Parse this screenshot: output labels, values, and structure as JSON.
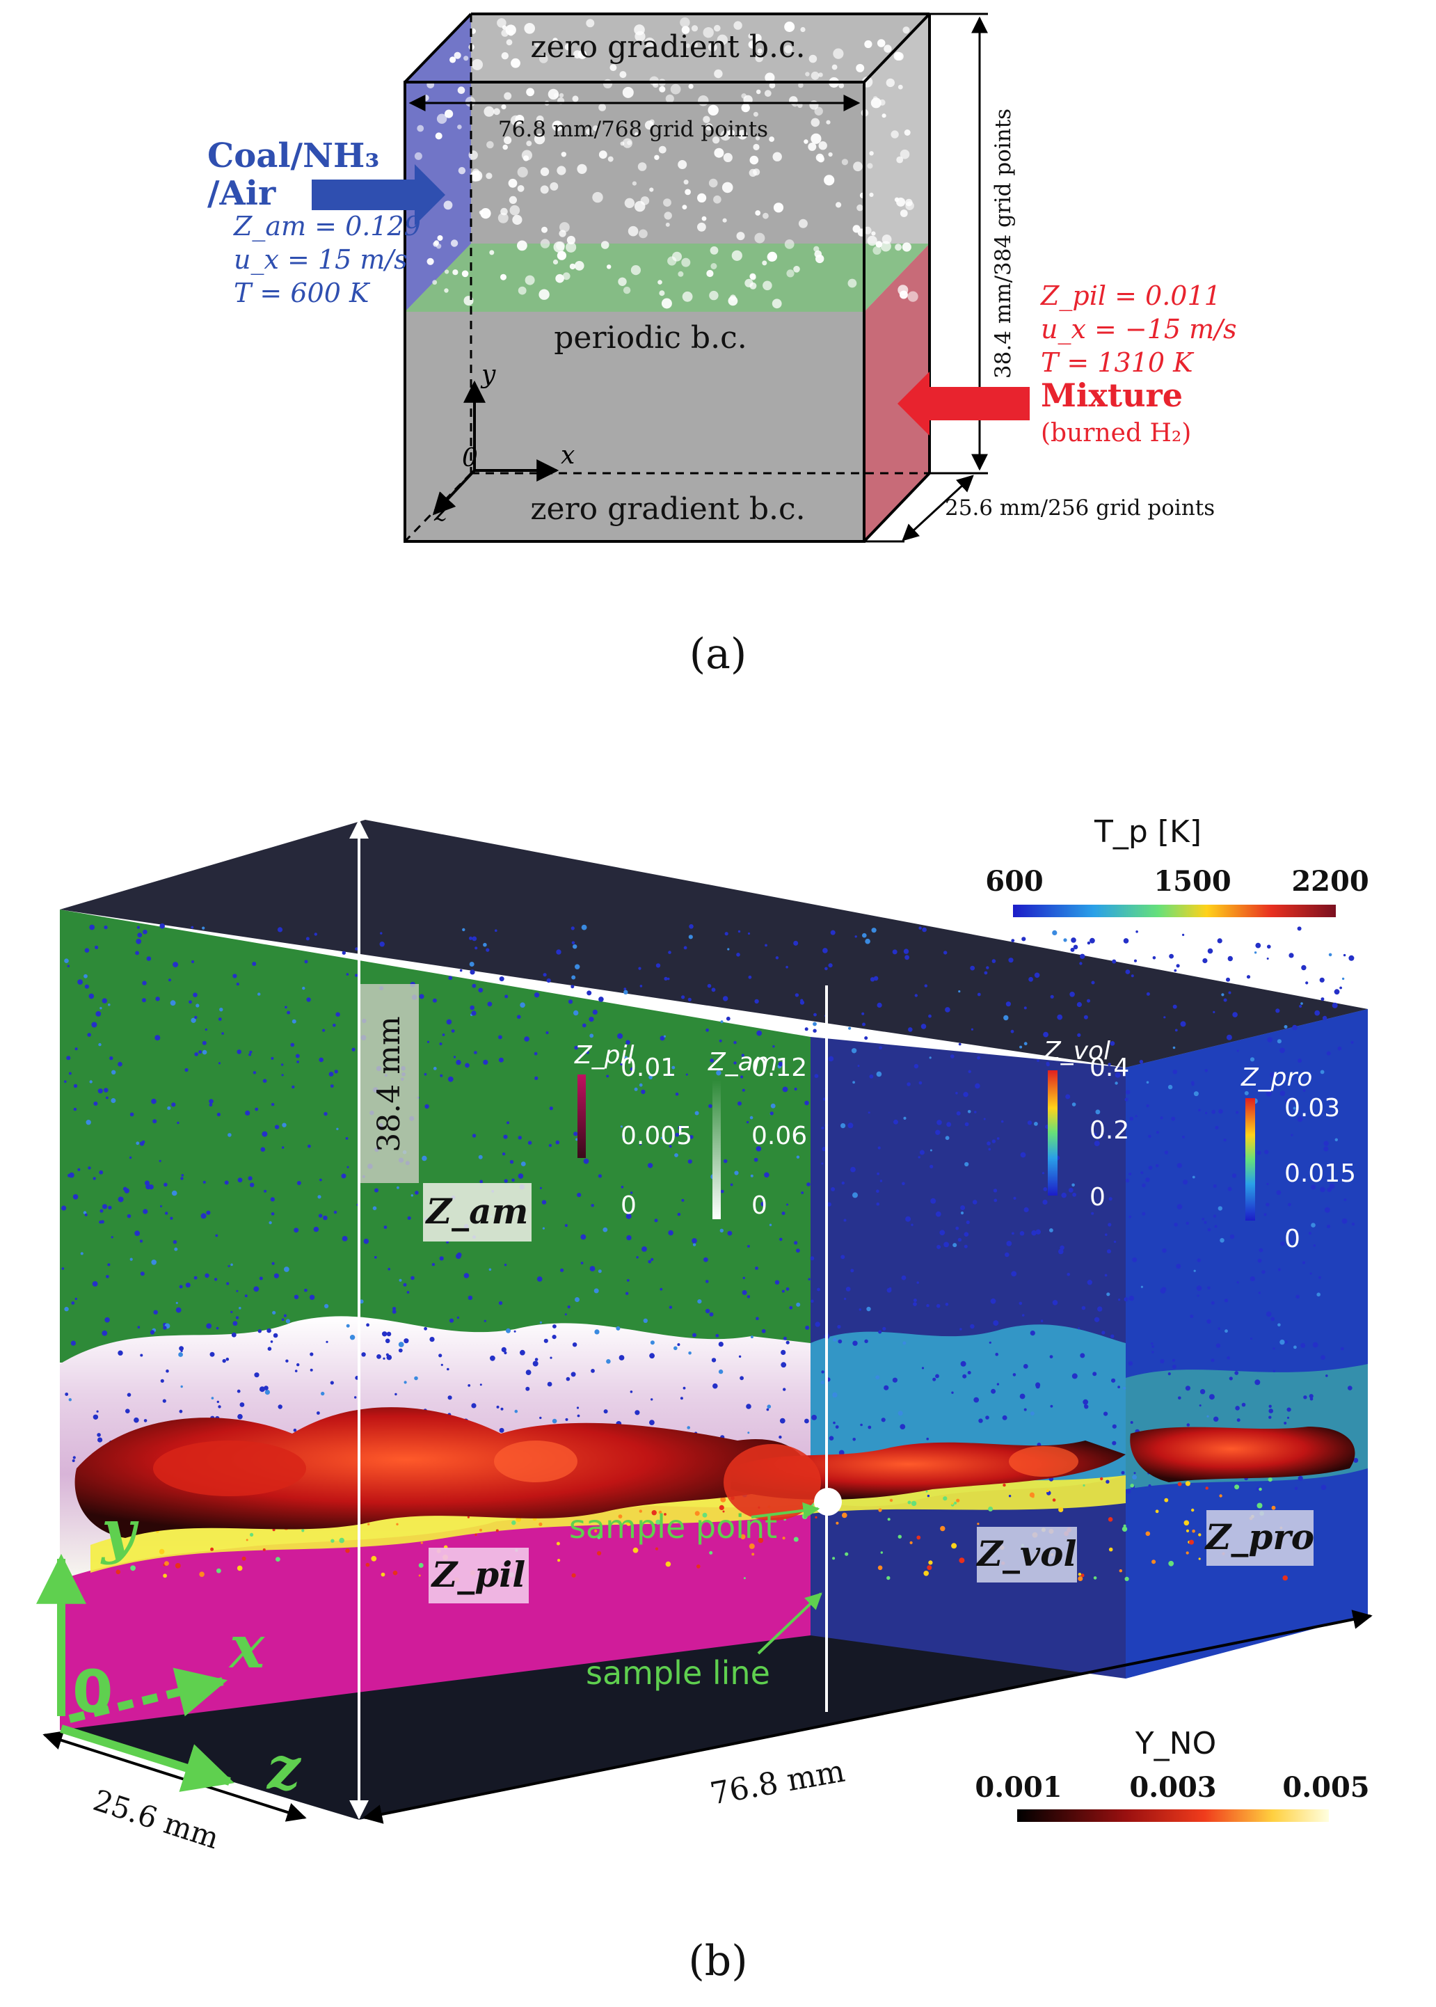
{
  "panel_a": {
    "label": "(a)",
    "top_bc": "zero gradient b.c.",
    "bottom_bc": "zero gradient b.c.",
    "periodic_bc": "periodic b.c.",
    "x_dim": "76.8 mm/768 grid points",
    "y_dim": "38.4 mm/384 grid points",
    "z_dim": "25.6 mm/256 grid points",
    "inlet": {
      "line1": "Coal/NH₃",
      "line2": "/Air",
      "z": "Z_am = 0.129",
      "u": "u_x = 15 m/s",
      "t": "T = 600 K",
      "color": "#2f4fb0"
    },
    "outlet": {
      "z": "Z_pil = 0.011",
      "u": "u_x = −15 m/s",
      "t": "T = 1310 K",
      "line1": "Mixture",
      "line2": "(burned H₂)",
      "color": "#e8232e"
    },
    "axes": {
      "y": "y",
      "x": "x",
      "z": "z",
      "origin": "0"
    }
  },
  "panel_b": {
    "label": "(b)",
    "height_label": "38.4 mm",
    "length_label": "76.8 mm",
    "depth_label": "25.6 mm",
    "tp_legend": {
      "title": "T_p [K]",
      "ticks": [
        "600",
        "1500",
        "2200"
      ]
    },
    "yno_legend": {
      "title": "Y_NO",
      "ticks": [
        "0.001",
        "0.003",
        "0.005"
      ]
    },
    "zpil_legend": {
      "title": "Z_pil",
      "ticks": [
        "0.01",
        "0.005",
        "0"
      ]
    },
    "zam_legend": {
      "title": "Z_am",
      "ticks": [
        "0.12",
        "0.06",
        "0"
      ]
    },
    "zvol_legend": {
      "title": "Z_vol",
      "ticks": [
        "0.4",
        "0.2",
        "0"
      ]
    },
    "zpro_legend": {
      "title": "Z_pro",
      "ticks": [
        "0.03",
        "0.015",
        "0"
      ]
    },
    "tags": {
      "zam": "Z_am",
      "zpil": "Z_pil",
      "zvol": "Z_vol",
      "zpro": "Z_pro"
    },
    "sample_point": "sample point",
    "sample_line": "sample line",
    "axes": {
      "y": "y",
      "x": "x",
      "z": "z",
      "origin": "0"
    }
  }
}
